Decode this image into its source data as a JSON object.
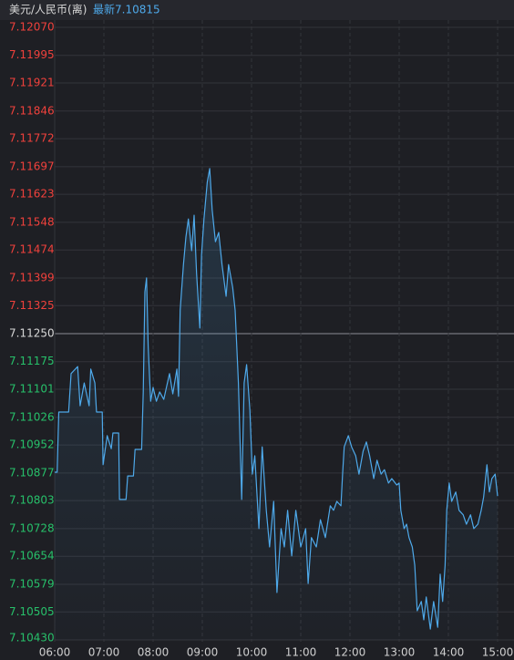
{
  "chart_data": {
    "type": "line",
    "title": "美元/人民币(离)",
    "subtitle": "最新7.10815",
    "color": "#4ea9ea",
    "up_color": "#f0413c",
    "down_color": "#27c06a",
    "grid": true,
    "xlim": [
      "06:00",
      "15:00"
    ],
    "xticks": [
      "06:00",
      "07:00",
      "08:00",
      "09:00",
      "10:00",
      "11:00",
      "12:00",
      "13:00",
      "14:00",
      "15:00"
    ],
    "ylim": [
      7.1043,
      7.1207
    ],
    "yticks": [
      {
        "value": 7.1207,
        "label": "7.12070"
      },
      7.11995,
      7.11921,
      7.11846,
      7.11772,
      7.11697,
      7.11623,
      7.11548,
      7.11474,
      7.11399,
      7.11325,
      {
        "value": 7.1125,
        "label": "7.11250"
      },
      7.11175,
      7.11101,
      7.11026,
      7.10952,
      7.10877,
      7.10803,
      7.10728,
      7.10654,
      7.10579,
      7.10505,
      {
        "value": 7.1043,
        "label": "7.10430"
      }
    ],
    "x": [
      "06:00",
      "06:03",
      "06:05",
      "06:17",
      "06:20",
      "06:28",
      "06:31",
      "06:36",
      "06:42",
      "06:44",
      "06:49",
      "06:51",
      "06:58",
      "06:59",
      "07:04",
      "07:09",
      "07:11",
      "07:18",
      "07:19",
      "07:27",
      "07:29",
      "07:36",
      "07:38",
      "07:46",
      "07:48",
      "07:50",
      "07:52",
      "07:54",
      "07:57",
      "08:00",
      "08:04",
      "08:08",
      "08:13",
      "08:20",
      "08:24",
      "08:29",
      "08:31",
      "08:33",
      "08:37",
      "08:40",
      "08:43",
      "08:47",
      "08:50",
      "08:53",
      "08:57",
      "08:59",
      "09:02",
      "09:06",
      "09:09",
      "09:12",
      "09:16",
      "09:20",
      "09:24",
      "09:29",
      "09:32",
      "09:37",
      "09:40",
      "09:42",
      "09:44",
      "09:48",
      "09:51",
      "09:54",
      "09:58",
      "10:01",
      "10:04",
      "10:09",
      "10:13",
      "10:18",
      "10:22",
      "10:27",
      "10:31",
      "10:36",
      "10:40",
      "10:44",
      "10:49",
      "10:54",
      "11:00",
      "11:06",
      "11:09",
      "11:13",
      "11:19",
      "11:24",
      "11:30",
      "11:36",
      "11:40",
      "11:44",
      "11:49",
      "11:51",
      "11:53",
      "11:58",
      "12:02",
      "12:07",
      "12:11",
      "12:16",
      "12:20",
      "12:24",
      "12:29",
      "12:33",
      "12:38",
      "12:42",
      "12:47",
      "12:51",
      "12:57",
      "13:00",
      "13:02",
      "13:06",
      "13:09",
      "13:12",
      "13:16",
      "13:19",
      "13:22",
      "13:27",
      "13:30",
      "13:33",
      "13:38",
      "13:42",
      "13:47",
      "13:50",
      "13:53",
      "13:56",
      "13:58",
      "14:01",
      "14:04",
      "14:09",
      "14:13",
      "14:18",
      "14:22",
      "14:27",
      "14:31",
      "14:36",
      "14:40",
      "14:43",
      "14:47",
      "14:50",
      "14:53",
      "14:57",
      "15:00"
    ],
    "values": [
      7.10879,
      7.10879,
      7.1104,
      7.1104,
      7.11143,
      7.11162,
      7.11057,
      7.11118,
      7.11057,
      7.11155,
      7.11118,
      7.1104,
      7.1104,
      7.10899,
      7.10977,
      7.10942,
      7.10984,
      7.10984,
      7.10806,
      7.10806,
      7.10869,
      7.10869,
      7.1094,
      7.1094,
      7.11094,
      7.11362,
      7.11399,
      7.11216,
      7.11069,
      7.11106,
      7.11069,
      7.11094,
      7.11074,
      7.11143,
      7.11089,
      7.11155,
      7.11082,
      7.11313,
      7.11435,
      7.11509,
      7.11557,
      7.11472,
      7.11567,
      7.11411,
      7.11265,
      7.1146,
      7.11557,
      7.11655,
      7.11692,
      7.11582,
      7.11496,
      7.11521,
      7.11435,
      7.1135,
      7.11435,
      7.11374,
      7.11313,
      7.11216,
      7.11118,
      7.10806,
      7.11118,
      7.11167,
      7.11045,
      7.10874,
      7.10923,
      7.10728,
      7.10947,
      7.10777,
      7.10679,
      7.10801,
      7.10557,
      7.10728,
      7.10679,
      7.10777,
      7.10655,
      7.10777,
      7.10679,
      7.10728,
      7.10581,
      7.10704,
      7.10679,
      7.10752,
      7.10704,
      7.10789,
      7.10777,
      7.10801,
      7.10789,
      7.10874,
      7.10947,
      7.10977,
      7.10947,
      7.10923,
      7.10874,
      7.10935,
      7.1096,
      7.10923,
      7.10862,
      7.10911,
      7.10874,
      7.10886,
      7.1085,
      7.10862,
      7.10845,
      7.1085,
      7.10777,
      7.10728,
      7.1074,
      7.10704,
      7.10679,
      7.1063,
      7.10508,
      7.10533,
      7.10484,
      7.10545,
      7.10459,
      7.10533,
      7.10464,
      7.10606,
      7.10533,
      7.1063,
      7.10777,
      7.1085,
      7.10801,
      7.10826,
      7.10777,
      7.10765,
      7.1074,
      7.10765,
      7.10728,
      7.1074,
      7.10777,
      7.10813,
      7.10899,
      7.10826,
      7.10862,
      7.10874,
      7.10815
    ]
  }
}
